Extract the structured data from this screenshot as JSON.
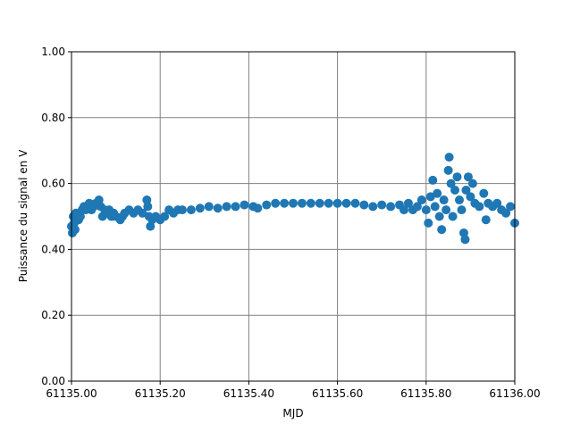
{
  "chart_data": {
    "type": "scatter",
    "xlabel": "MJD",
    "ylabel": "Puissance du signal en V",
    "xlim": [
      61135.0,
      61136.0
    ],
    "ylim": [
      0,
      1
    ],
    "xticks": [
      {
        "value": 61135.0,
        "label": "61135.00"
      },
      {
        "value": 61135.2,
        "label": "61135.20"
      },
      {
        "value": 61135.4,
        "label": "61135.40"
      },
      {
        "value": 61135.6,
        "label": "61135.60"
      },
      {
        "value": 61135.8,
        "label": "61135.80"
      },
      {
        "value": 61136.0,
        "label": "61136.00"
      }
    ],
    "yticks": [
      {
        "value": 0,
        "label": "0.00"
      },
      {
        "value": 0.2,
        "label": "0.20"
      },
      {
        "value": 0.4,
        "label": "0.40"
      },
      {
        "value": 0.6,
        "label": "0.60"
      },
      {
        "value": 0.8,
        "label": "0.80"
      },
      {
        "value": 1.0,
        "label": "1.00"
      }
    ],
    "grid": true,
    "series": [
      {
        "color": "#1f77b4",
        "x": [
          61135.0,
          61135.002,
          61135.004,
          61135.006,
          61135.008,
          61135.01,
          61135.013,
          61135.016,
          61135.02,
          61135.024,
          61135.028,
          61135.032,
          61135.036,
          61135.04,
          61135.045,
          61135.05,
          61135.055,
          61135.062,
          61135.066,
          61135.07,
          61135.075,
          61135.08,
          61135.085,
          61135.09,
          61135.095,
          61135.1,
          61135.11,
          61135.115,
          61135.12,
          61135.13,
          61135.14,
          61135.15,
          61135.16,
          61135.17,
          61135.172,
          61135.175,
          61135.178,
          61135.182,
          61135.19,
          61135.2,
          61135.21,
          61135.22,
          61135.23,
          61135.24,
          61135.25,
          61135.27,
          61135.29,
          61135.31,
          61135.33,
          61135.35,
          61135.37,
          61135.39,
          61135.41,
          61135.42,
          61135.44,
          61135.46,
          61135.48,
          61135.5,
          61135.52,
          61135.54,
          61135.56,
          61135.58,
          61135.6,
          61135.62,
          61135.64,
          61135.66,
          61135.68,
          61135.7,
          61135.72,
          61135.74,
          61135.75,
          61135.76,
          61135.77,
          61135.78,
          61135.79,
          61135.8,
          61135.805,
          61135.81,
          61135.815,
          61135.82,
          61135.825,
          61135.83,
          61135.835,
          61135.84,
          61135.845,
          61135.85,
          61135.852,
          61135.856,
          61135.86,
          61135.865,
          61135.87,
          61135.875,
          61135.88,
          61135.885,
          61135.888,
          61135.89,
          61135.895,
          61135.9,
          61135.905,
          61135.91,
          61135.92,
          61135.93,
          61135.935,
          61135.94,
          61135.95,
          61135.96,
          61135.97,
          61135.98,
          61135.99,
          61136.0
        ],
        "y": [
          0.47,
          0.45,
          0.5,
          0.48,
          0.46,
          0.51,
          0.5,
          0.49,
          0.5,
          0.52,
          0.53,
          0.52,
          0.53,
          0.54,
          0.52,
          0.53,
          0.54,
          0.55,
          0.53,
          0.5,
          0.52,
          0.51,
          0.52,
          0.5,
          0.51,
          0.5,
          0.49,
          0.5,
          0.51,
          0.52,
          0.51,
          0.52,
          0.51,
          0.55,
          0.53,
          0.5,
          0.47,
          0.49,
          0.5,
          0.49,
          0.5,
          0.52,
          0.51,
          0.52,
          0.52,
          0.52,
          0.525,
          0.53,
          0.525,
          0.53,
          0.53,
          0.535,
          0.53,
          0.525,
          0.535,
          0.54,
          0.54,
          0.54,
          0.54,
          0.54,
          0.54,
          0.54,
          0.54,
          0.54,
          0.54,
          0.535,
          0.53,
          0.535,
          0.53,
          0.535,
          0.52,
          0.54,
          0.52,
          0.53,
          0.55,
          0.52,
          0.48,
          0.56,
          0.61,
          0.53,
          0.57,
          0.5,
          0.46,
          0.55,
          0.52,
          0.64,
          0.68,
          0.6,
          0.5,
          0.58,
          0.62,
          0.55,
          0.52,
          0.45,
          0.43,
          0.58,
          0.62,
          0.56,
          0.6,
          0.54,
          0.53,
          0.57,
          0.49,
          0.54,
          0.53,
          0.54,
          0.52,
          0.51,
          0.53,
          0.48
        ]
      }
    ]
  }
}
